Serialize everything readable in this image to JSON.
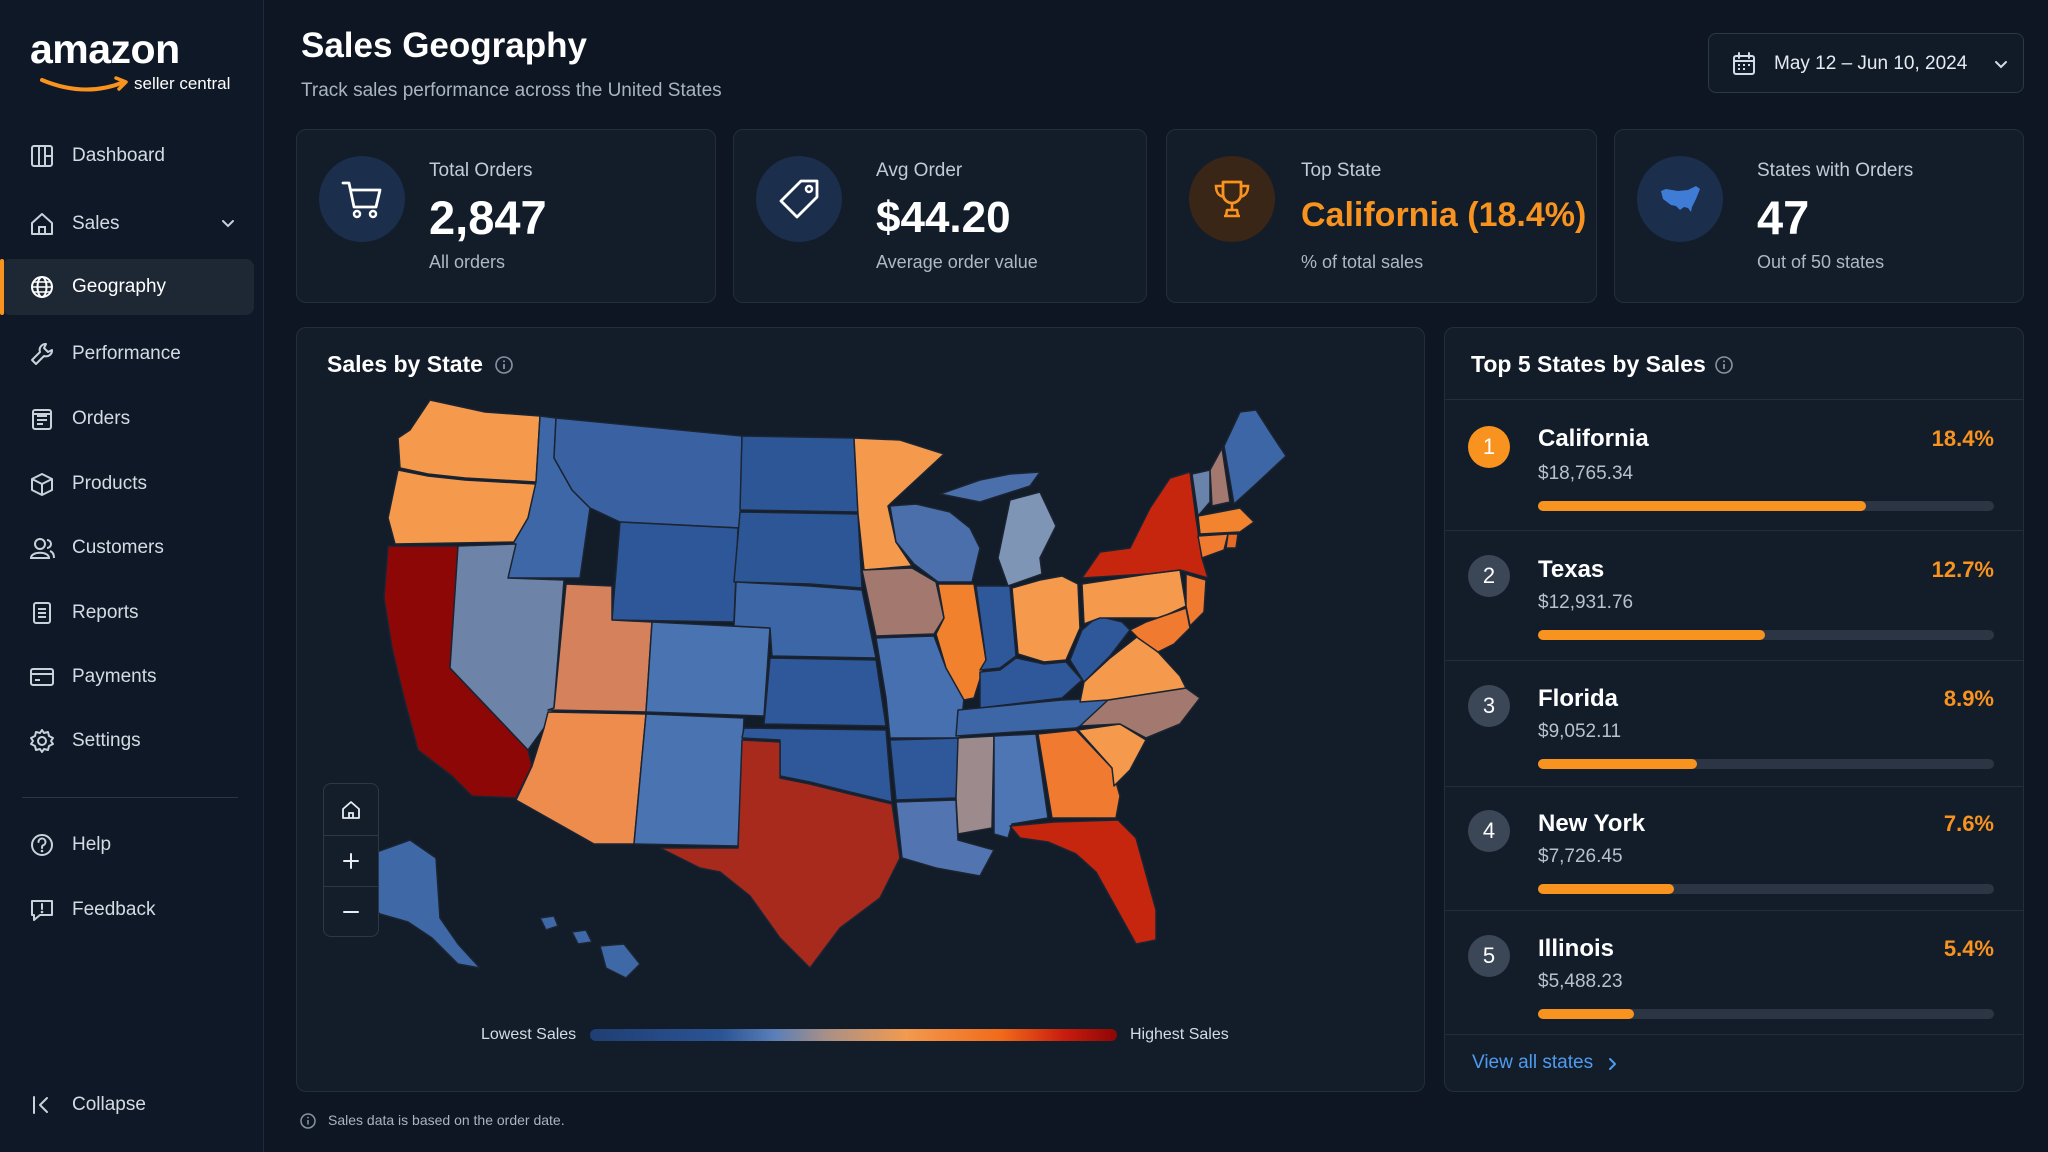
{
  "brand": {
    "logo_word": "amazon",
    "logo_sub": "seller central",
    "accent": "#f7931e"
  },
  "sidebar": {
    "items": [
      {
        "label": "Dashboard",
        "icon": "dashboard-icon"
      },
      {
        "label": "Sales",
        "icon": "home-icon",
        "expandable": true
      },
      {
        "label": "Geography",
        "icon": "globe-icon",
        "active": true
      },
      {
        "label": "Performance",
        "icon": "wrench-icon"
      },
      {
        "label": "Orders",
        "icon": "orders-icon"
      },
      {
        "label": "Products",
        "icon": "box-icon"
      },
      {
        "label": "Customers",
        "icon": "users-icon"
      },
      {
        "label": "Reports",
        "icon": "report-icon"
      },
      {
        "label": "Payments",
        "icon": "card-icon"
      },
      {
        "label": "Settings",
        "icon": "gear-icon"
      }
    ],
    "secondary": [
      {
        "label": "Help",
        "icon": "help-icon"
      },
      {
        "label": "Feedback",
        "icon": "feedback-icon"
      }
    ],
    "collapse_label": "Collapse"
  },
  "header": {
    "title": "Sales Geography",
    "subtitle": "Track sales performance across the United States",
    "date_range": "May 12 – Jun 10, 2024"
  },
  "kpis": [
    {
      "label": "Total Orders",
      "value": "2,847",
      "sub": "All orders",
      "icon": "cart-icon"
    },
    {
      "label": "Avg Order",
      "value": "$44.20",
      "sub": "Average order value",
      "icon": "tag-icon"
    },
    {
      "label": "Top State",
      "value": "California (18.4%)",
      "sub": "% of total sales",
      "icon": "trophy-icon"
    },
    {
      "label": "States with Orders",
      "value": "47",
      "sub": "Out of 50 states",
      "icon": "us-map-icon"
    }
  ],
  "map_panel": {
    "title": "Sales by State",
    "legend_low": "Lowest Sales",
    "legend_high": "Highest Sales",
    "colors": {
      "low": "#2c5493",
      "mid": "#f29a4f",
      "high": "#8d0606"
    }
  },
  "top_states": {
    "title": "Top 5 States by Sales",
    "items": [
      {
        "rank": "1",
        "name": "California",
        "amount": "$18,765.34",
        "pct": "18.4%",
        "share": 0.184
      },
      {
        "rank": "2",
        "name": "Texas",
        "amount": "$12,931.76",
        "pct": "12.7%",
        "share": 0.127
      },
      {
        "rank": "3",
        "name": "Florida",
        "amount": "$9,052.11",
        "pct": "8.9%",
        "share": 0.089
      },
      {
        "rank": "4",
        "name": "New York",
        "amount": "$7,726.45",
        "pct": "7.6%",
        "share": 0.076
      },
      {
        "rank": "5",
        "name": "Illinois",
        "amount": "$5,488.23",
        "pct": "5.4%",
        "share": 0.054
      }
    ],
    "view_all": "View all states"
  },
  "footnote": "Sales data is based on the order date."
}
